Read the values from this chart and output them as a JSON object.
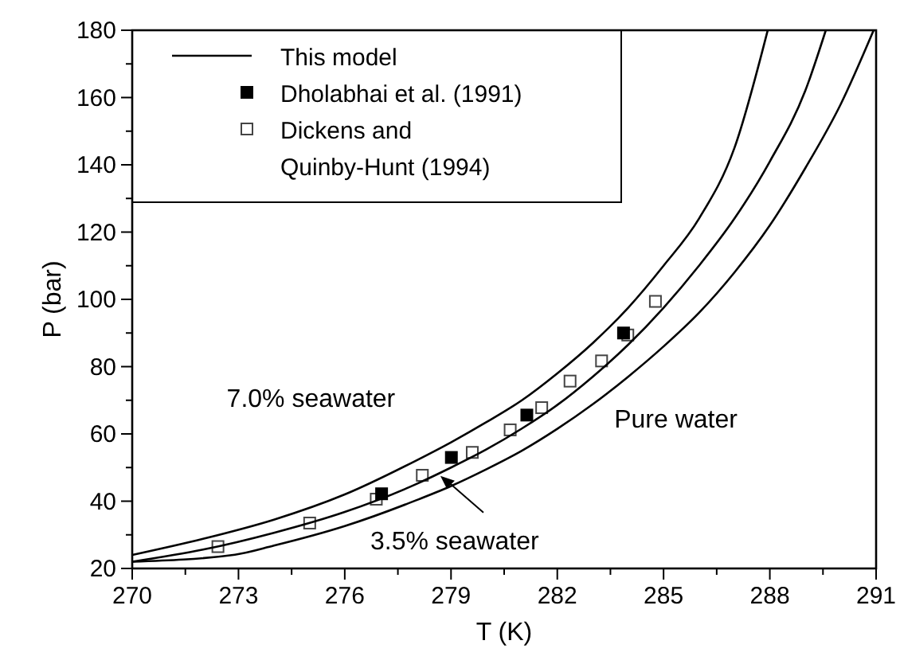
{
  "chart_data": {
    "type": "line",
    "xlabel": "T (K)",
    "ylabel": "P (bar)",
    "xlim": [
      270,
      291
    ],
    "ylim": [
      20,
      180
    ],
    "xticks": [
      270,
      {
        "value": 271.5,
        "label": null
      },
      273,
      {
        "value": 274.5,
        "label": null
      },
      276,
      {
        "value": 277.5,
        "label": null
      },
      279,
      {
        "value": 280.5,
        "label": null
      },
      282,
      {
        "value": 283.5,
        "label": null
      },
      285,
      {
        "value": 286.5,
        "label": null
      },
      288,
      {
        "value": 289.5,
        "label": null
      },
      291
    ],
    "yticks": [
      20,
      {
        "value": 30,
        "label": null
      },
      40,
      {
        "value": 50,
        "label": null
      },
      60,
      {
        "value": 70,
        "label": null
      },
      80,
      {
        "value": 90,
        "label": null
      },
      100,
      {
        "value": 110,
        "label": null
      },
      120,
      {
        "value": 130,
        "label": null
      },
      140,
      {
        "value": 150,
        "label": null
      },
      160,
      {
        "value": 170,
        "label": null
      },
      180
    ],
    "grid": false,
    "legend": "top left",
    "line_style": "solid",
    "series": [
      {
        "name": "This model",
        "color": "#000000",
        "marker": "none",
        "x": [
          270,
          272,
          274,
          276,
          278,
          279,
          280,
          281,
          282,
          283,
          284,
          285,
          286,
          287,
          287.94
        ],
        "values": [
          24,
          28.8,
          34.5,
          42,
          52,
          57.5,
          63.5,
          70,
          78,
          87,
          97.5,
          110,
          124,
          145,
          180
        ]
      },
      {
        "color": "#000000",
        "marker": "none",
        "x": [
          270,
          272,
          274,
          276,
          278,
          279,
          280,
          281,
          282,
          283,
          284,
          285,
          286,
          287,
          288,
          289,
          289.58
        ],
        "values": [
          22,
          25.6,
          30.6,
          36.8,
          45,
          50,
          55.4,
          61.6,
          68.6,
          77,
          86.5,
          97.5,
          110,
          124,
          141,
          162,
          180
        ]
      },
      {
        "color": "#000000",
        "marker": "none",
        "x": [
          270,
          272.9,
          274,
          276,
          278,
          279,
          280,
          281,
          282,
          283,
          284,
          285,
          286,
          287,
          288,
          289,
          290,
          290.93
        ],
        "values": [
          22,
          24.1,
          26.8,
          32.6,
          40.2,
          44.5,
          49.5,
          55,
          61.5,
          68.8,
          77,
          86,
          96,
          108,
          122,
          139,
          158,
          180
        ]
      },
      {
        "name": "Dholabhai et al. (1991)",
        "type": "scatter",
        "color": "#000000",
        "marker": "square",
        "x": [
          277.04,
          279.01,
          281.14,
          283.87
        ],
        "values": [
          42.2,
          53,
          65.6,
          90
        ]
      },
      {
        "name": "Dickens and Quinby-Hunt (1994)",
        "type": "scatter",
        "color": "#444444",
        "marker": "square",
        "x": [
          272.42,
          275.01,
          276.89,
          278.19,
          279.6,
          280.67,
          281.56,
          282.36,
          283.25,
          283.99,
          284.77
        ],
        "values": [
          26.5,
          33.5,
          40.6,
          47.7,
          54.5,
          61.2,
          67.8,
          75.7,
          81.7,
          89.4,
          99.4
        ]
      }
    ],
    "annotations": [
      "7.0% seawater",
      "Pure water",
      {
        "text": "3.5% seawater",
        "x": 278.7,
        "y": 47.5
      }
    ]
  }
}
